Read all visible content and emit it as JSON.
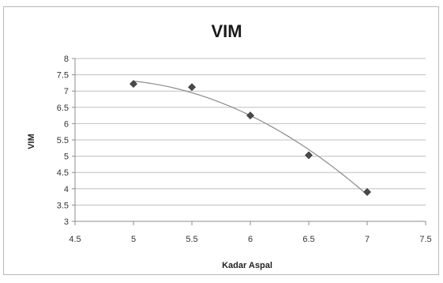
{
  "chart_data": {
    "type": "scatter",
    "title": "VIM",
    "xlabel": "Kadar Aspal",
    "ylabel": "VIM",
    "xlim": [
      4.5,
      7.5
    ],
    "ylim": [
      3,
      8
    ],
    "xticks": [
      "4.5",
      "5",
      "5.5",
      "6",
      "6.5",
      "7",
      "7.5"
    ],
    "yticks": [
      "3",
      "3.5",
      "4",
      "4.5",
      "5",
      "5.5",
      "6",
      "6.5",
      "7",
      "7.5",
      "8"
    ],
    "grid": true,
    "legend": "none",
    "series": [
      {
        "x": [
          5.0,
          5.5,
          6.0,
          6.5,
          7.0
        ],
        "y": [
          7.22,
          7.12,
          6.25,
          5.03,
          3.9
        ],
        "marker": "diamond",
        "color": "#4a4a4a",
        "trendline": "polynomial"
      }
    ],
    "colors": {
      "gridline": "#bfbfbf",
      "axis": "#8c8c8c",
      "marker": "#4a4a4a",
      "trendline": "#8a8a8a"
    }
  }
}
